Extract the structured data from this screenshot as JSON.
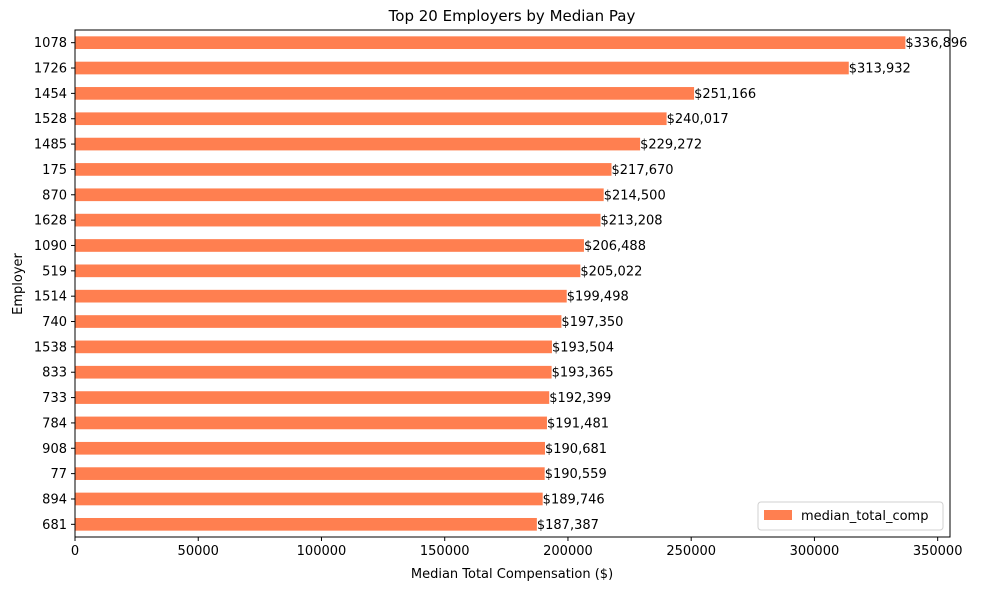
{
  "chart_data": {
    "type": "bar",
    "orientation": "horizontal",
    "title": "Top 20 Employers by Median Pay",
    "xlabel": "Median Total Compensation ($)",
    "ylabel": "Employer",
    "xlim": [
      0,
      355000
    ],
    "x_ticks": [
      0,
      50000,
      100000,
      150000,
      200000,
      250000,
      300000,
      350000
    ],
    "x_tick_labels": [
      "0",
      "50000",
      "100000",
      "150000",
      "200000",
      "250000",
      "300000",
      "350000"
    ],
    "grid": false,
    "legend_position": "bottom-right",
    "categories": [
      "1078",
      "1726",
      "1454",
      "1528",
      "1485",
      "175",
      "870",
      "1628",
      "1090",
      "519",
      "1514",
      "740",
      "1538",
      "833",
      "733",
      "784",
      "908",
      "77",
      "894",
      "681"
    ],
    "series": [
      {
        "name": "median_total_comp",
        "color": "#ff7f50",
        "values": [
          336896,
          313932,
          251166,
          240017,
          229272,
          217670,
          214500,
          213208,
          206488,
          205022,
          199498,
          197350,
          193504,
          193365,
          192399,
          191481,
          190681,
          190559,
          189746,
          187387
        ],
        "labels": [
          "$336,896",
          "$313,932",
          "$251,166",
          "$240,017",
          "$229,272",
          "$217,670",
          "$214,500",
          "$213,208",
          "$206,488",
          "$205,022",
          "$199,498",
          "$197,350",
          "$193,504",
          "$193,365",
          "$192,399",
          "$191,481",
          "$190,681",
          "$190,559",
          "$189,746",
          "$187,387"
        ]
      }
    ]
  }
}
